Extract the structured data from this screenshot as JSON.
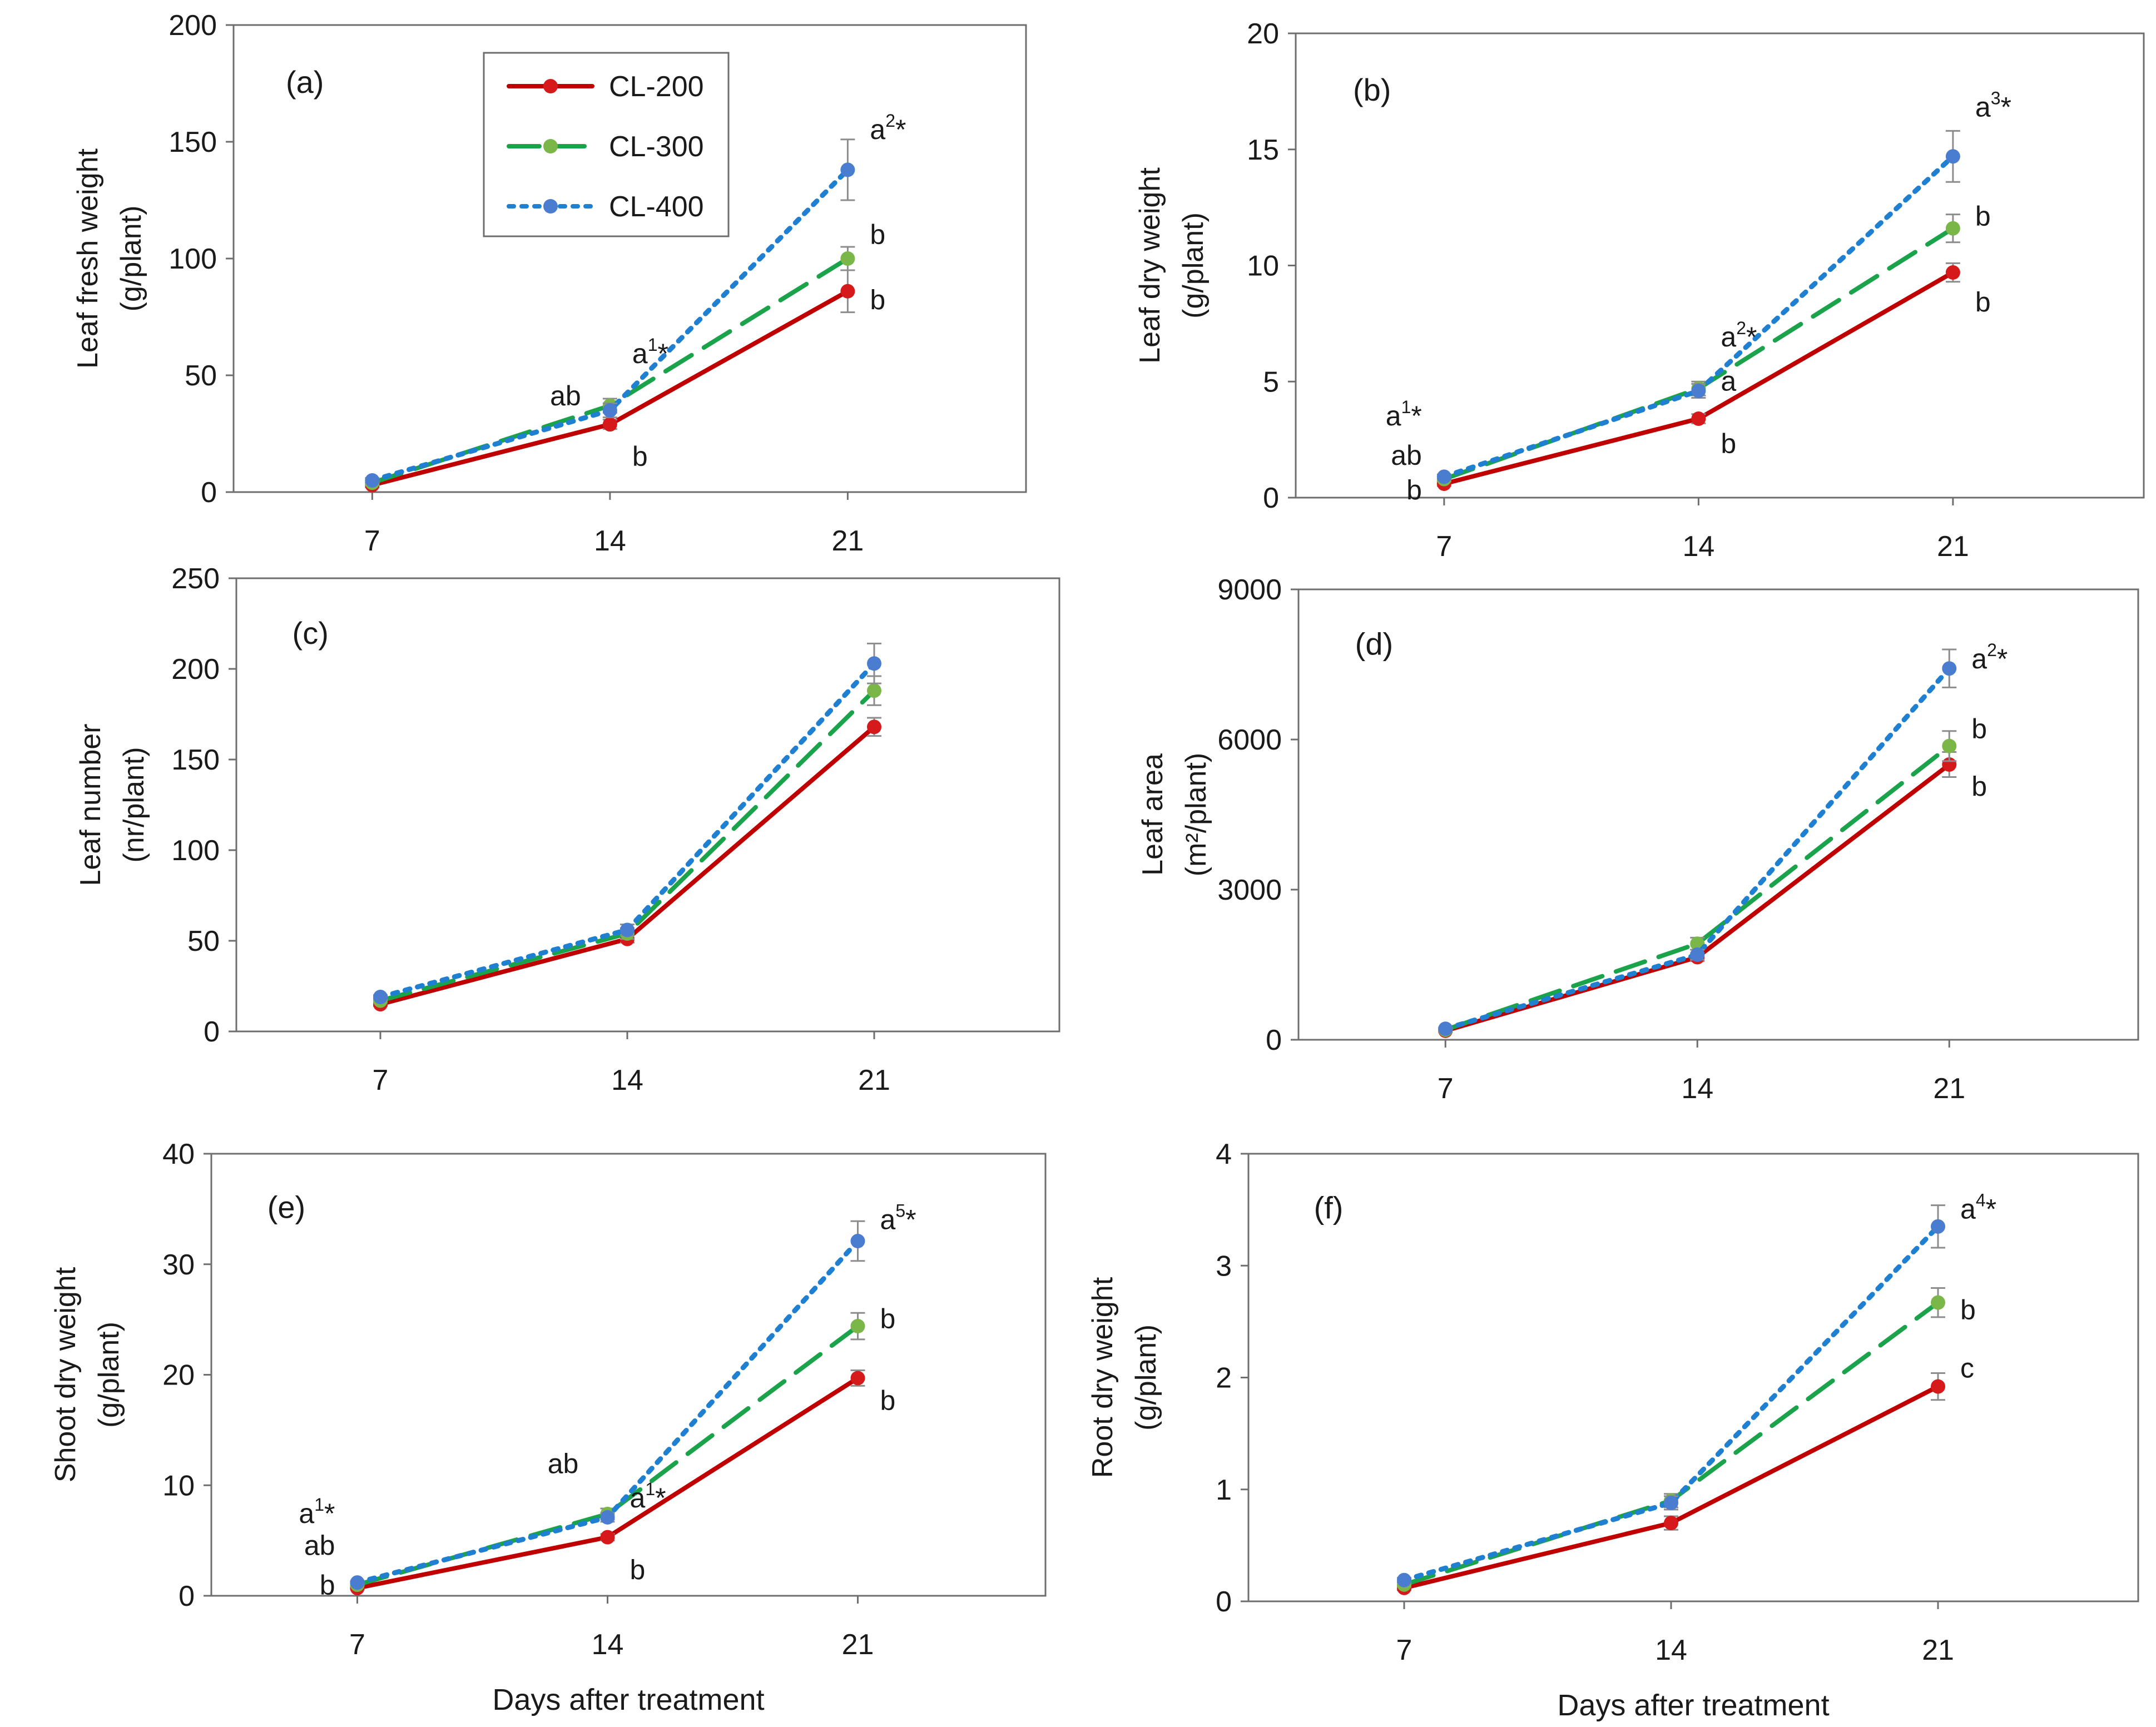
{
  "colors": {
    "CL-200": "#c00000",
    "CL-300": "#1aa34a",
    "CL-400": "#1f7fd0",
    "marker_CL-200": "#d6191b",
    "marker_CL-300": "#7ab648",
    "marker_CL-400": "#4a7cd0",
    "errorbar": "#8c8c8c",
    "axis": "#6e6e6e"
  },
  "legend": [
    "CL-200",
    "CL-300",
    "CL-400"
  ],
  "chart_data": [
    {
      "type": "line",
      "panel": "(a)",
      "ylabel_lines": [
        "Leaf fresh weight",
        "(g/plant)"
      ],
      "xlabel": "",
      "x": [
        "7",
        "14",
        "21"
      ],
      "ylim": [
        0,
        200
      ],
      "yticks": [
        "0",
        "50",
        "100",
        "150",
        "200"
      ],
      "series": [
        {
          "name": "CL-200",
          "values": [
            3,
            29,
            86
          ],
          "errors": [
            1,
            2,
            9
          ]
        },
        {
          "name": "CL-300",
          "values": [
            4,
            37,
            100
          ],
          "errors": [
            1,
            3,
            5
          ]
        },
        {
          "name": "CL-400",
          "values": [
            5,
            35,
            138
          ],
          "errors": [
            1,
            3,
            13
          ]
        }
      ],
      "annotations": [
        {
          "text": "ab",
          "sup": "",
          "x": 1,
          "y": 41
        },
        {
          "text": "a",
          "sup": "1",
          "star": "*",
          "x": 1,
          "y": 59
        },
        {
          "text": "b",
          "sup": "",
          "x": 1,
          "y": 15
        },
        {
          "text": "a",
          "sup": "2",
          "star": "*",
          "x": 2,
          "y": 155
        },
        {
          "text": "b",
          "sup": "",
          "x": 2,
          "y": 110
        },
        {
          "text": "b",
          "sup": "",
          "x": 2,
          "y": 82
        }
      ]
    },
    {
      "type": "line",
      "panel": "(b)",
      "ylabel_lines": [
        "Leaf dry weight",
        "(g/plant)"
      ],
      "xlabel": "",
      "x": [
        "7",
        "14",
        "21"
      ],
      "ylim": [
        0,
        20
      ],
      "yticks": [
        "0",
        "5",
        "10",
        "15",
        "20"
      ],
      "series": [
        {
          "name": "CL-200",
          "values": [
            0.6,
            3.4,
            9.7
          ],
          "errors": [
            0.1,
            0.2,
            0.4
          ]
        },
        {
          "name": "CL-300",
          "values": [
            0.8,
            4.7,
            11.6
          ],
          "errors": [
            0.1,
            0.3,
            0.6
          ]
        },
        {
          "name": "CL-400",
          "values": [
            0.9,
            4.6,
            14.7
          ],
          "errors": [
            0.1,
            0.3,
            1.1
          ]
        }
      ],
      "annotations": [
        {
          "text": "b",
          "sup": "",
          "x": 0,
          "y": 0.3
        },
        {
          "text": "ab",
          "sup": "",
          "x": 0,
          "y": 1.8
        },
        {
          "text": "a",
          "sup": "1",
          "star": "*",
          "x": 0,
          "y": 3.5
        },
        {
          "text": "a",
          "sup": "",
          "x": 1,
          "y": 5.0
        },
        {
          "text": "a",
          "sup": "2",
          "star": "*",
          "x": 1,
          "y": 6.9
        },
        {
          "text": "b",
          "sup": "",
          "x": 1,
          "y": 2.3
        },
        {
          "text": "a",
          "sup": "3",
          "star": "*",
          "x": 2,
          "y": 16.8
        },
        {
          "text": "b",
          "sup": "",
          "x": 2,
          "y": 12.1
        },
        {
          "text": "b",
          "sup": "",
          "x": 2,
          "y": 8.4
        }
      ]
    },
    {
      "type": "line",
      "panel": "(c)",
      "ylabel_lines": [
        "Leaf number",
        "(nr/plant)"
      ],
      "xlabel": "",
      "x": [
        "7",
        "14",
        "21"
      ],
      "ylim": [
        0,
        250
      ],
      "yticks": [
        "0",
        "50",
        "100",
        "150",
        "200",
        "250"
      ],
      "series": [
        {
          "name": "CL-200",
          "values": [
            15,
            51,
            168
          ],
          "errors": [
            1,
            2,
            5
          ]
        },
        {
          "name": "CL-300",
          "values": [
            17,
            54,
            188
          ],
          "errors": [
            1,
            3,
            8
          ]
        },
        {
          "name": "CL-400",
          "values": [
            19,
            56,
            203
          ],
          "errors": [
            1,
            3,
            11
          ]
        }
      ],
      "annotations": []
    },
    {
      "type": "line",
      "panel": "(d)",
      "ylabel_lines": [
        "Leaf area",
        "(m²/plant)"
      ],
      "xlabel": "",
      "x": [
        "7",
        "14",
        "21"
      ],
      "ylim": [
        0,
        9000
      ],
      "yticks": [
        "0",
        "3000",
        "6000",
        "9000"
      ],
      "series": [
        {
          "name": "CL-200",
          "values": [
            180,
            1650,
            5500
          ],
          "errors": [
            20,
            80,
            250
          ]
        },
        {
          "name": "CL-300",
          "values": [
            200,
            1920,
            5870
          ],
          "errors": [
            20,
            120,
            300
          ]
        },
        {
          "name": "CL-400",
          "values": [
            220,
            1700,
            7420
          ],
          "errors": [
            20,
            100,
            380
          ]
        }
      ],
      "annotations": [
        {
          "text": "a",
          "sup": "2",
          "star": "*",
          "x": 2,
          "y": 7600
        },
        {
          "text": "b",
          "sup": "",
          "x": 2,
          "y": 6200
        },
        {
          "text": "b",
          "sup": "",
          "x": 2,
          "y": 5050
        }
      ]
    },
    {
      "type": "line",
      "panel": "(e)",
      "ylabel_lines": [
        "Shoot dry weight",
        "(g/plant)"
      ],
      "xlabel": "Days after treatment",
      "x": [
        "7",
        "14",
        "21"
      ],
      "ylim": [
        0,
        40
      ],
      "yticks": [
        "0",
        "10",
        "20",
        "30",
        "40"
      ],
      "series": [
        {
          "name": "CL-200",
          "values": [
            0.7,
            5.3,
            19.7
          ],
          "errors": [
            0.1,
            0.3,
            0.7
          ]
        },
        {
          "name": "CL-300",
          "values": [
            1.0,
            7.4,
            24.4
          ],
          "errors": [
            0.1,
            0.5,
            1.2
          ]
        },
        {
          "name": "CL-400",
          "values": [
            1.2,
            7.1,
            32.1
          ],
          "errors": [
            0.1,
            0.4,
            1.8
          ]
        }
      ],
      "annotations": [
        {
          "text": "b",
          "sup": "",
          "x": 0,
          "y": 0.9
        },
        {
          "text": "ab",
          "sup": "",
          "x": 0,
          "y": 4.5
        },
        {
          "text": "a",
          "sup": "1",
          "star": "*",
          "x": 0,
          "y": 7.4
        },
        {
          "text": "a",
          "sup": "1",
          "star": "*",
          "x": 1,
          "y": 8.8
        },
        {
          "text": "ab",
          "sup": "",
          "x": 1,
          "y": 11.9
        },
        {
          "text": "b",
          "sup": "",
          "x": 1,
          "y": 2.3
        },
        {
          "text": "a",
          "sup": "5",
          "star": "*",
          "x": 2,
          "y": 34.0
        },
        {
          "text": "b",
          "sup": "",
          "x": 2,
          "y": 25.0
        },
        {
          "text": "b",
          "sup": "",
          "x": 2,
          "y": 17.6
        }
      ]
    },
    {
      "type": "line",
      "panel": "(f)",
      "ylabel_lines": [
        "Root dry weight",
        "(g/plant)"
      ],
      "xlabel": "Days after treatment",
      "x": [
        "7",
        "14",
        "21"
      ],
      "ylim": [
        0,
        4
      ],
      "yticks": [
        "0",
        "1",
        "2",
        "3",
        "4"
      ],
      "series": [
        {
          "name": "CL-200",
          "values": [
            0.12,
            0.7,
            1.92
          ],
          "errors": [
            0.02,
            0.06,
            0.12
          ]
        },
        {
          "name": "CL-300",
          "values": [
            0.15,
            0.9,
            2.67
          ],
          "errors": [
            0.02,
            0.06,
            0.13
          ]
        },
        {
          "name": "CL-400",
          "values": [
            0.19,
            0.88,
            3.35
          ],
          "errors": [
            0.02,
            0.06,
            0.19
          ]
        }
      ],
      "annotations": [
        {
          "text": "a",
          "sup": "4",
          "star": "*",
          "x": 2,
          "y": 3.5
        },
        {
          "text": "b",
          "sup": "",
          "x": 2,
          "y": 2.6
        },
        {
          "text": "c",
          "sup": "",
          "x": 2,
          "y": 2.08
        }
      ]
    }
  ]
}
